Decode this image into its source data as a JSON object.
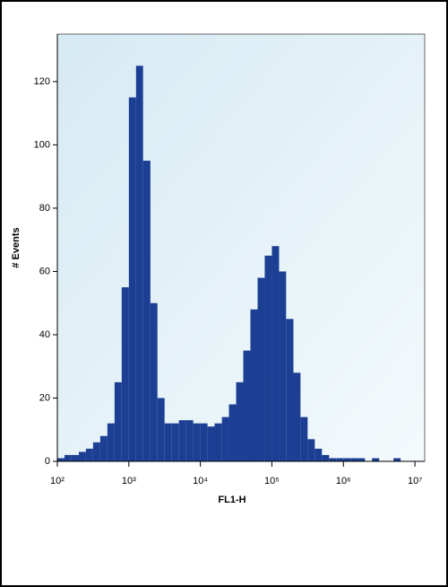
{
  "chart_data": {
    "type": "histogram",
    "xlabel": "FL1-H",
    "ylabel": "# Events",
    "xscale": "log",
    "bins": [
      100,
      126,
      158,
      200,
      251,
      316,
      398,
      501,
      631,
      794,
      1000,
      1260,
      1580,
      2000,
      2510,
      3160,
      3980,
      5010,
      6310,
      7940,
      10000,
      12600,
      15800,
      20000,
      25100,
      31600,
      39800,
      50100,
      63100,
      79400,
      100000,
      126000,
      158000,
      200000,
      251000,
      316000,
      398000,
      501000,
      631000,
      794000,
      1000000,
      1260000,
      1580000,
      2000000,
      2510000,
      3160000,
      3980000,
      5010000,
      6310000,
      7940000,
      10000000
    ],
    "counts": [
      1,
      2,
      2,
      3,
      4,
      6,
      8,
      12,
      25,
      55,
      115,
      125,
      95,
      50,
      20,
      12,
      12,
      13,
      13,
      12,
      12,
      11,
      12,
      14,
      18,
      25,
      35,
      48,
      58,
      65,
      68,
      60,
      45,
      28,
      14,
      7,
      4,
      2,
      1,
      1,
      1,
      1,
      1,
      0,
      1,
      0,
      0,
      1,
      0,
      0
    ],
    "color": "#1c3f94",
    "xlim": [
      100,
      13700000
    ],
    "ylim": [
      0,
      135
    ],
    "xticks": [
      {
        "value": 100,
        "label": "10²"
      },
      {
        "value": 1000,
        "label": "10³"
      },
      {
        "value": 10000,
        "label": "10⁴"
      },
      {
        "value": 100000,
        "label": "10⁵"
      },
      {
        "value": 1000000,
        "label": "10⁶"
      },
      {
        "value": 10000000,
        "label": "10⁷"
      }
    ],
    "yticks": [
      0,
      20,
      40,
      60,
      80,
      100,
      120
    ]
  }
}
